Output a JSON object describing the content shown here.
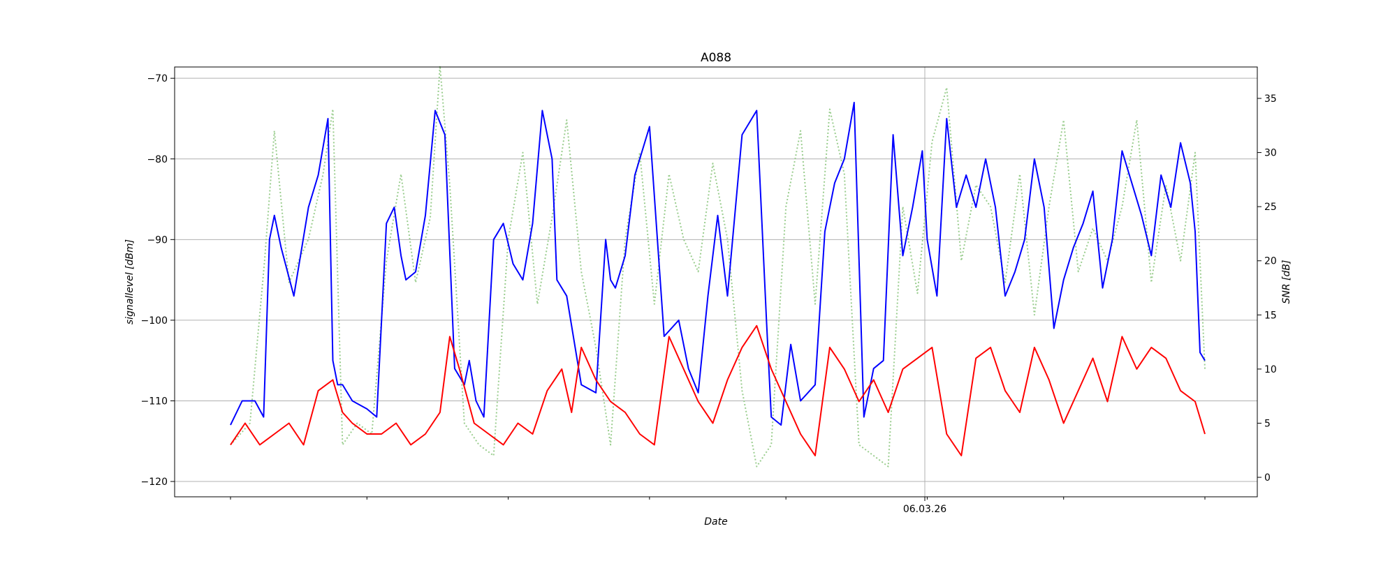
{
  "chart_data": {
    "type": "line",
    "title": "A088",
    "xlabel": "Date",
    "ylabel_left": "signallevel [dBm]",
    "ylabel_right": "SNR [dB]",
    "x_tick_labels": [
      "06.03.26"
    ],
    "x_range": [
      0,
      1
    ],
    "ylim_left": [
      -121.9,
      -68.6
    ],
    "ylim_right": [
      -1.8,
      37.9
    ],
    "yticks_left": [
      -70,
      -80,
      -90,
      -100,
      -110,
      -120
    ],
    "yticks_right": [
      35,
      30,
      25,
      20,
      15,
      10,
      5,
      0
    ],
    "grid": true,
    "colors": {
      "signal": "#0000ff",
      "snr": "#ff0000",
      "reference": "#9acd8e",
      "grid": "#b0b0b0"
    },
    "series": [
      {
        "axis": "left",
        "style": "solid",
        "color": "#0000ff",
        "x": [
          0.0,
          0.012,
          0.025,
          0.034,
          0.04,
          0.045,
          0.052,
          0.065,
          0.08,
          0.09,
          0.1,
          0.105,
          0.11,
          0.115,
          0.125,
          0.14,
          0.15,
          0.16,
          0.168,
          0.175,
          0.18,
          0.19,
          0.2,
          0.21,
          0.22,
          0.23,
          0.24,
          0.245,
          0.252,
          0.26,
          0.27,
          0.28,
          0.29,
          0.3,
          0.31,
          0.32,
          0.33,
          0.335,
          0.345,
          0.36,
          0.375,
          0.385,
          0.39,
          0.395,
          0.405,
          0.415,
          0.43,
          0.445,
          0.46,
          0.47,
          0.48,
          0.49,
          0.5,
          0.51,
          0.525,
          0.54,
          0.55,
          0.555,
          0.565,
          0.575,
          0.585,
          0.6,
          0.61,
          0.62,
          0.63,
          0.64,
          0.65,
          0.66,
          0.67,
          0.68,
          0.69,
          0.7,
          0.71,
          0.715,
          0.725,
          0.735,
          0.745,
          0.755,
          0.765,
          0.775,
          0.785,
          0.795,
          0.805,
          0.815,
          0.825,
          0.835,
          0.845,
          0.855,
          0.865,
          0.875,
          0.885,
          0.895,
          0.905,
          0.915,
          0.925,
          0.935,
          0.945,
          0.955,
          0.965,
          0.975,
          0.985,
          0.99,
          0.995,
          1.0
        ],
        "y": [
          -113,
          -110,
          -110,
          -112,
          -90,
          -87,
          -91,
          -97,
          -86,
          -82,
          -75,
          -105,
          -108,
          -108,
          -110,
          -111,
          -112,
          -88,
          -86,
          -92,
          -95,
          -94,
          -87,
          -74,
          -77,
          -106,
          -108,
          -105,
          -110,
          -112,
          -90,
          -88,
          -93,
          -95,
          -88,
          -74,
          -80,
          -95,
          -97,
          -108,
          -109,
          -90,
          -95,
          -96,
          -92,
          -82,
          -76,
          -102,
          -100,
          -106,
          -109,
          -97,
          -87,
          -97,
          -77,
          -74,
          -100,
          -112,
          -113,
          -103,
          -110,
          -108,
          -89,
          -83,
          -80,
          -73,
          -112,
          -106,
          -105,
          -77,
          -92,
          -86,
          -79,
          -90,
          -97,
          -75,
          -86,
          -82,
          -86,
          -80,
          -86,
          -97,
          -94,
          -90,
          -80,
          -86,
          -101,
          -95,
          -91,
          -88,
          -84,
          -96,
          -90,
          -79,
          -83,
          -87,
          -92,
          -82,
          -86,
          -78,
          -83,
          -89,
          -104,
          -105
        ]
      },
      {
        "axis": "right",
        "style": "solid",
        "color": "#ff0000",
        "x": [
          0.0,
          0.015,
          0.03,
          0.045,
          0.06,
          0.075,
          0.09,
          0.105,
          0.115,
          0.125,
          0.14,
          0.155,
          0.17,
          0.185,
          0.2,
          0.215,
          0.225,
          0.235,
          0.25,
          0.265,
          0.28,
          0.295,
          0.31,
          0.325,
          0.34,
          0.35,
          0.36,
          0.375,
          0.39,
          0.405,
          0.42,
          0.435,
          0.45,
          0.465,
          0.48,
          0.495,
          0.51,
          0.525,
          0.54,
          0.555,
          0.57,
          0.585,
          0.6,
          0.615,
          0.63,
          0.645,
          0.66,
          0.675,
          0.69,
          0.705,
          0.72,
          0.735,
          0.75,
          0.765,
          0.78,
          0.795,
          0.81,
          0.825,
          0.84,
          0.855,
          0.87,
          0.885,
          0.9,
          0.915,
          0.93,
          0.945,
          0.96,
          0.975,
          0.99,
          1.0
        ],
        "y": [
          3,
          5,
          3,
          4,
          5,
          3,
          8,
          9,
          6,
          5,
          4,
          4,
          5,
          3,
          4,
          6,
          13,
          10,
          5,
          4,
          3,
          5,
          4,
          8,
          10,
          6,
          12,
          9,
          7,
          6,
          4,
          3,
          13,
          10,
          7,
          5,
          9,
          12,
          14,
          10,
          7,
          4,
          2,
          12,
          10,
          7,
          9,
          6,
          10,
          11,
          12,
          4,
          2,
          11,
          12,
          8,
          6,
          12,
          9,
          5,
          8,
          11,
          7,
          13,
          10,
          12,
          11,
          8,
          7,
          4
        ]
      },
      {
        "axis": "right",
        "style": "dotted",
        "color": "#9acd8e",
        "x": [
          0.0,
          0.02,
          0.035,
          0.045,
          0.06,
          0.08,
          0.095,
          0.105,
          0.115,
          0.13,
          0.145,
          0.16,
          0.175,
          0.19,
          0.205,
          0.215,
          0.225,
          0.24,
          0.255,
          0.27,
          0.285,
          0.3,
          0.315,
          0.33,
          0.345,
          0.36,
          0.375,
          0.39,
          0.405,
          0.42,
          0.435,
          0.45,
          0.465,
          0.48,
          0.495,
          0.51,
          0.525,
          0.54,
          0.555,
          0.57,
          0.585,
          0.6,
          0.615,
          0.63,
          0.645,
          0.66,
          0.675,
          0.69,
          0.705,
          0.72,
          0.735,
          0.75,
          0.765,
          0.78,
          0.795,
          0.81,
          0.825,
          0.84,
          0.855,
          0.87,
          0.885,
          0.9,
          0.915,
          0.93,
          0.945,
          0.96,
          0.975,
          0.99,
          1.0
        ],
        "y": [
          3,
          5,
          20,
          32,
          18,
          22,
          28,
          34,
          3,
          5,
          4,
          20,
          28,
          18,
          24,
          38,
          27,
          5,
          3,
          2,
          22,
          30,
          16,
          24,
          33,
          19,
          12,
          3,
          22,
          30,
          16,
          28,
          22,
          19,
          29,
          22,
          8,
          1,
          3,
          25,
          32,
          16,
          34,
          28,
          3,
          2,
          1,
          25,
          17,
          31,
          36,
          20,
          27,
          25,
          18,
          28,
          15,
          25,
          33,
          19,
          23,
          20,
          25,
          33,
          18,
          27,
          20,
          30,
          10
        ]
      }
    ]
  }
}
